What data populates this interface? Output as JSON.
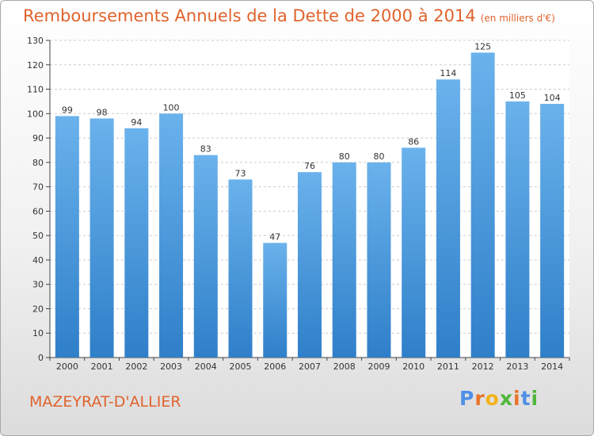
{
  "title": "Remboursements Annuels de la Dette de 2000 à 2014",
  "subtitle": "(en milliers d'€)",
  "commune": "MAZEYRAT-D'ALLIER",
  "logo": {
    "letters": [
      "P",
      "r",
      "o",
      "x",
      "i",
      "t",
      "i"
    ],
    "colors": [
      "#4f8fe6",
      "#e8742a",
      "#f3b318",
      "#4fb73a",
      "#e8742a",
      "#4f8fe6",
      "#4fb73a"
    ]
  },
  "colors": {
    "bar_top": "#6ab2ec",
    "bar_bottom": "#2f7fc9",
    "accent": "#e0632c",
    "grid": "#cccccc"
  },
  "chart_data": {
    "type": "bar",
    "title": "Remboursements Annuels de la Dette de 2000 à 2014",
    "subtitle": "(en milliers d'€)",
    "categories": [
      "2000",
      "2001",
      "2002",
      "2003",
      "2004",
      "2005",
      "2006",
      "2007",
      "2008",
      "2009",
      "2010",
      "2011",
      "2012",
      "2013",
      "2014"
    ],
    "values": [
      99,
      98,
      94,
      100,
      83,
      73,
      47,
      76,
      80,
      80,
      86,
      114,
      125,
      105,
      104
    ],
    "ylim": [
      0,
      130
    ],
    "yticks": [
      0,
      10,
      20,
      30,
      40,
      50,
      60,
      70,
      80,
      90,
      100,
      110,
      120,
      130
    ],
    "grid": true,
    "legend": "none"
  }
}
